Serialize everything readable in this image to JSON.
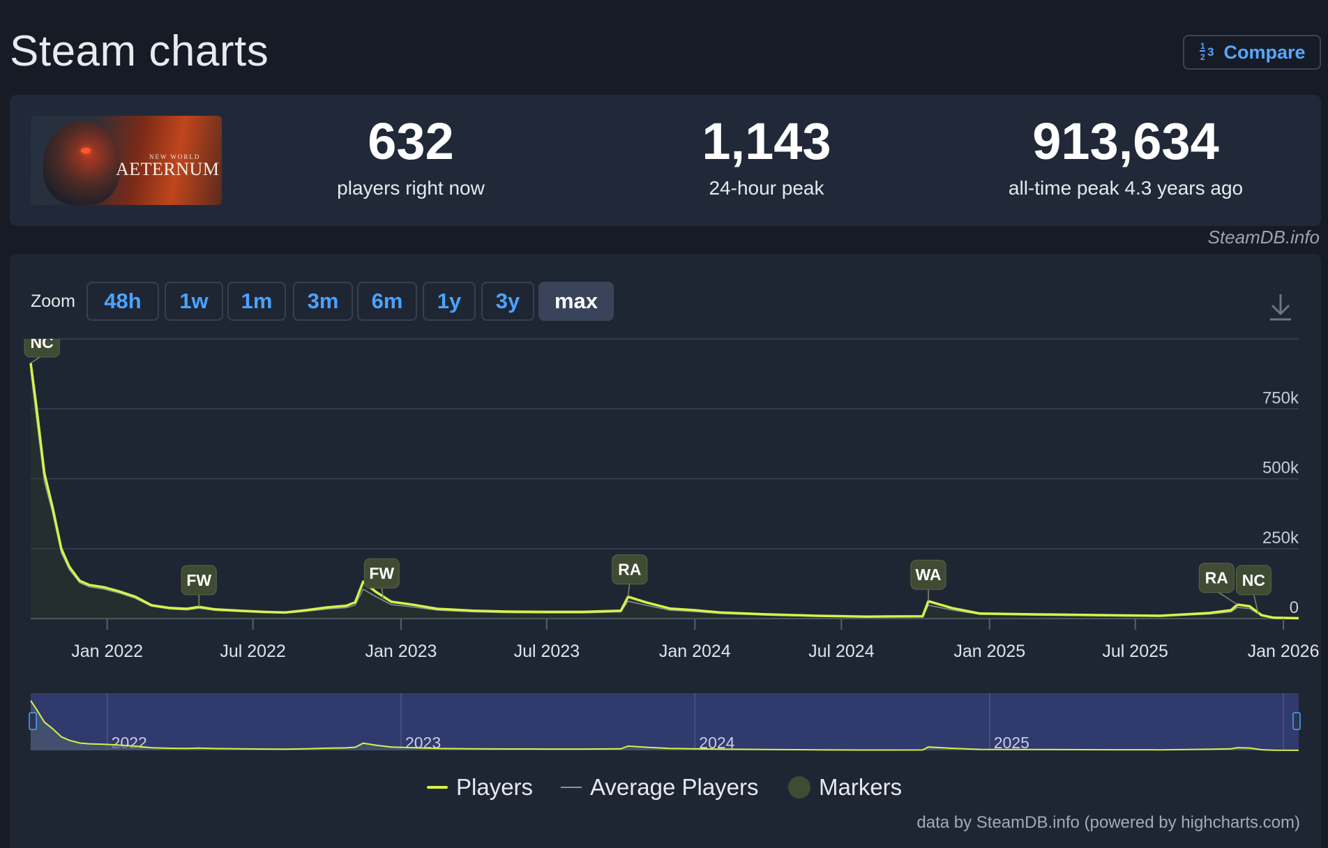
{
  "page": {
    "title": "Steam charts"
  },
  "compare": {
    "icon": "fraction-numbers-icon",
    "label": "Compare"
  },
  "game": {
    "logo_small": "NEW WORLD",
    "logo_main": "AETERNUM"
  },
  "stats": [
    {
      "value": "632",
      "label": "players right now"
    },
    {
      "value": "1,143",
      "label": "24-hour peak"
    },
    {
      "value": "913,634",
      "label": "all-time peak 4.3 years ago"
    }
  ],
  "credit": "SteamDB.info",
  "zoom": {
    "label": "Zoom",
    "buttons": [
      "48h",
      "1w",
      "1m",
      "3m",
      "6m",
      "1y",
      "3y",
      "max"
    ],
    "active": "max"
  },
  "legend": {
    "players": "Players",
    "average": "Average Players",
    "markers": "Markers"
  },
  "footer": "data by SteamDB.info (powered by highcharts.com)",
  "colors": {
    "players": "#d7f249",
    "average": "#8a94a3",
    "marker": "#3f4b32",
    "navigator_bg": "#313a6c",
    "accent": "#4aa3ff"
  },
  "chart_data": {
    "type": "line",
    "title": "",
    "xlabel": "",
    "ylabel": "",
    "x_ticks": [
      "Jan 2022",
      "Jul 2022",
      "Jan 2023",
      "Jul 2023",
      "Jan 2024",
      "Jul 2024",
      "Jan 2025",
      "Jul 2025",
      "Jan 2026"
    ],
    "y_ticks": [
      "0",
      "250k",
      "500k",
      "750k"
    ],
    "ylim": [
      0,
      1000000
    ],
    "x_range": [
      "2021-09-28",
      "2026-01-20"
    ],
    "navigator_labels": [
      "2022",
      "2023",
      "2024",
      "2025"
    ],
    "series": [
      {
        "name": "Players",
        "points": [
          [
            "2021-09-28",
            913634
          ],
          [
            "2021-10-05",
            760000
          ],
          [
            "2021-10-15",
            520000
          ],
          [
            "2021-10-25",
            400000
          ],
          [
            "2021-11-05",
            250000
          ],
          [
            "2021-11-15",
            185000
          ],
          [
            "2021-11-28",
            135000
          ],
          [
            "2021-12-10",
            120000
          ],
          [
            "2021-12-28",
            112000
          ],
          [
            "2022-01-15",
            98000
          ],
          [
            "2022-02-05",
            78000
          ],
          [
            "2022-02-25",
            48000
          ],
          [
            "2022-03-20",
            38000
          ],
          [
            "2022-04-10",
            35000
          ],
          [
            "2022-04-25",
            42000
          ],
          [
            "2022-05-15",
            33000
          ],
          [
            "2022-06-15",
            28000
          ],
          [
            "2022-07-15",
            24000
          ],
          [
            "2022-08-10",
            22000
          ],
          [
            "2022-09-05",
            30000
          ],
          [
            "2022-10-01",
            40000
          ],
          [
            "2022-10-25",
            46000
          ],
          [
            "2022-11-05",
            58000
          ],
          [
            "2022-11-15",
            132000
          ],
          [
            "2022-12-01",
            95000
          ],
          [
            "2022-12-20",
            60000
          ],
          [
            "2023-01-15",
            50000
          ],
          [
            "2023-02-15",
            35000
          ],
          [
            "2023-04-01",
            28000
          ],
          [
            "2023-05-15",
            25000
          ],
          [
            "2023-07-01",
            24000
          ],
          [
            "2023-08-15",
            24000
          ],
          [
            "2023-10-01",
            28000
          ],
          [
            "2023-10-10",
            78000
          ],
          [
            "2023-11-01",
            58000
          ],
          [
            "2023-12-01",
            36000
          ],
          [
            "2024-01-01",
            30000
          ],
          [
            "2024-02-01",
            22000
          ],
          [
            "2024-04-01",
            15000
          ],
          [
            "2024-06-01",
            10000
          ],
          [
            "2024-08-01",
            7000
          ],
          [
            "2024-10-10",
            8000
          ],
          [
            "2024-10-17",
            62000
          ],
          [
            "2024-11-15",
            38000
          ],
          [
            "2024-12-20",
            18000
          ],
          [
            "2025-03-01",
            15000
          ],
          [
            "2025-06-01",
            12000
          ],
          [
            "2025-08-01",
            10000
          ],
          [
            "2025-10-01",
            20000
          ],
          [
            "2025-10-28",
            30000
          ],
          [
            "2025-11-05",
            50000
          ],
          [
            "2025-11-20",
            44000
          ],
          [
            "2025-12-05",
            12000
          ],
          [
            "2025-12-20",
            3000
          ],
          [
            "2026-01-20",
            1143
          ]
        ]
      },
      {
        "name": "Average Players",
        "points": [
          [
            "2021-09-28",
            890000
          ],
          [
            "2021-10-05",
            720000
          ],
          [
            "2021-10-15",
            490000
          ],
          [
            "2021-10-25",
            380000
          ],
          [
            "2021-11-05",
            235000
          ],
          [
            "2021-11-15",
            175000
          ],
          [
            "2021-11-28",
            128000
          ],
          [
            "2021-12-10",
            113000
          ],
          [
            "2021-12-28",
            105000
          ],
          [
            "2022-01-15",
            92000
          ],
          [
            "2022-02-05",
            72000
          ],
          [
            "2022-02-25",
            44000
          ],
          [
            "2022-03-20",
            34000
          ],
          [
            "2022-04-10",
            31000
          ],
          [
            "2022-04-25",
            37000
          ],
          [
            "2022-05-15",
            29000
          ],
          [
            "2022-06-15",
            25000
          ],
          [
            "2022-07-15",
            21000
          ],
          [
            "2022-08-10",
            19000
          ],
          [
            "2022-09-05",
            26000
          ],
          [
            "2022-10-01",
            34000
          ],
          [
            "2022-10-25",
            39000
          ],
          [
            "2022-11-05",
            48000
          ],
          [
            "2022-11-15",
            105000
          ],
          [
            "2022-12-01",
            78000
          ],
          [
            "2022-12-20",
            50000
          ],
          [
            "2023-01-15",
            42000
          ],
          [
            "2023-02-15",
            30000
          ],
          [
            "2023-04-01",
            24000
          ],
          [
            "2023-05-15",
            21000
          ],
          [
            "2023-07-01",
            20000
          ],
          [
            "2023-08-15",
            20000
          ],
          [
            "2023-10-01",
            24000
          ],
          [
            "2023-10-10",
            62000
          ],
          [
            "2023-11-01",
            48000
          ],
          [
            "2023-12-01",
            30000
          ],
          [
            "2024-01-01",
            25000
          ],
          [
            "2024-02-01",
            18000
          ],
          [
            "2024-04-01",
            12000
          ],
          [
            "2024-06-01",
            8000
          ],
          [
            "2024-08-01",
            5500
          ],
          [
            "2024-10-10",
            6500
          ],
          [
            "2024-10-17",
            48000
          ],
          [
            "2024-11-15",
            31000
          ],
          [
            "2024-12-20",
            15000
          ],
          [
            "2025-03-01",
            12000
          ],
          [
            "2025-06-01",
            9500
          ],
          [
            "2025-08-01",
            8000
          ],
          [
            "2025-10-01",
            16000
          ],
          [
            "2025-10-28",
            24000
          ],
          [
            "2025-11-05",
            40000
          ],
          [
            "2025-11-20",
            36000
          ],
          [
            "2025-12-05",
            10000
          ],
          [
            "2025-12-20",
            2500
          ],
          [
            "2026-01-20",
            900
          ]
        ]
      }
    ],
    "markers": [
      {
        "label": "NC",
        "date": "2021-09-28",
        "value": 913634,
        "box_date": "2021-10-12",
        "box_value": 990000
      },
      {
        "label": "FW",
        "date": "2022-04-25",
        "value": 42000,
        "box_date": "2022-04-25",
        "box_value": 140000
      },
      {
        "label": "FW",
        "date": "2022-12-10",
        "value": 70000,
        "box_date": "2022-12-08",
        "box_value": 164000
      },
      {
        "label": "RA",
        "date": "2023-10-10",
        "value": 78000,
        "box_date": "2023-10-12",
        "box_value": 178000
      },
      {
        "label": "WA",
        "date": "2024-10-17",
        "value": 62000,
        "box_date": "2024-10-17",
        "box_value": 159000
      },
      {
        "label": "RA",
        "date": "2025-11-05",
        "value": 50000,
        "box_date": "2025-10-10",
        "box_value": 148000
      },
      {
        "label": "NC",
        "date": "2025-12-01",
        "value": 14000,
        "box_date": "2025-11-25",
        "box_value": 140000
      }
    ]
  }
}
